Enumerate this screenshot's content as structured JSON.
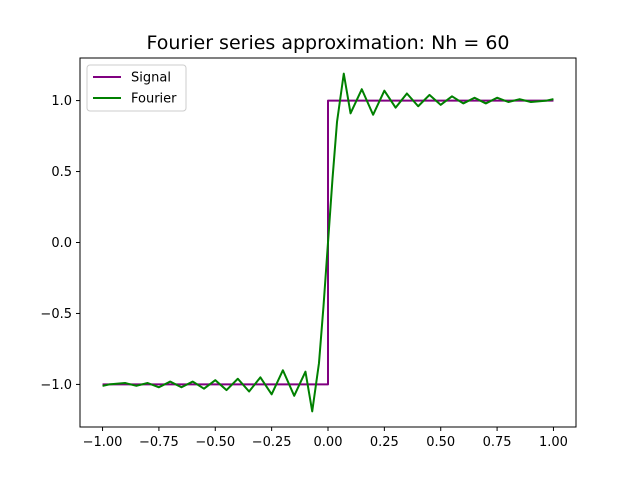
{
  "chart_data": {
    "type": "line",
    "title": "Fourier series approximation: Nh = 60",
    "xlabel": "",
    "ylabel": "",
    "xlim": [
      -1.1,
      1.1
    ],
    "ylim": [
      -1.3,
      1.3
    ],
    "x_ticks": [
      -1.0,
      -0.75,
      -0.5,
      -0.25,
      0.0,
      0.25,
      0.5,
      0.75,
      1.0
    ],
    "x_tick_labels": [
      "−1.00",
      "−0.75",
      "−0.50",
      "−0.25",
      "0.00",
      "0.25",
      "0.50",
      "0.75",
      "1.00"
    ],
    "y_ticks": [
      -1.0,
      -0.5,
      0.0,
      0.5,
      1.0
    ],
    "y_tick_labels": [
      "−1.0",
      "−0.5",
      "0.0",
      "0.5",
      "1.0"
    ],
    "grid": false,
    "legend": {
      "position": "top-left"
    },
    "series": [
      {
        "name": "Signal",
        "color": "#800080",
        "x": [
          -1.0,
          0.0,
          0.0,
          1.0
        ],
        "y": [
          -1.0,
          -1.0,
          1.0,
          1.0
        ]
      },
      {
        "name": "Fourier",
        "color": "#008000",
        "x": [
          -1.0,
          -0.97,
          -0.9,
          -0.85,
          -0.8,
          -0.75,
          -0.7,
          -0.65,
          -0.6,
          -0.55,
          -0.5,
          -0.45,
          -0.4,
          -0.35,
          -0.3,
          -0.25,
          -0.2,
          -0.15,
          -0.1,
          -0.07,
          -0.04,
          -0.02,
          0.0,
          0.02,
          0.04,
          0.07,
          0.1,
          0.15,
          0.2,
          0.25,
          0.3,
          0.35,
          0.4,
          0.45,
          0.5,
          0.55,
          0.6,
          0.65,
          0.7,
          0.75,
          0.8,
          0.85,
          0.9,
          0.97,
          1.0
        ],
        "y": [
          -1.01,
          -1.0,
          -0.99,
          -1.01,
          -0.99,
          -1.02,
          -0.98,
          -1.02,
          -0.98,
          -1.03,
          -0.97,
          -1.04,
          -0.96,
          -1.05,
          -0.95,
          -1.07,
          -0.9,
          -1.08,
          -0.91,
          -1.19,
          -0.85,
          -0.45,
          0.0,
          0.45,
          0.85,
          1.19,
          0.91,
          1.08,
          0.9,
          1.07,
          0.95,
          1.05,
          0.96,
          1.04,
          0.97,
          1.03,
          0.98,
          1.02,
          0.98,
          1.02,
          0.99,
          1.01,
          0.99,
          1.0,
          1.01
        ]
      }
    ]
  }
}
